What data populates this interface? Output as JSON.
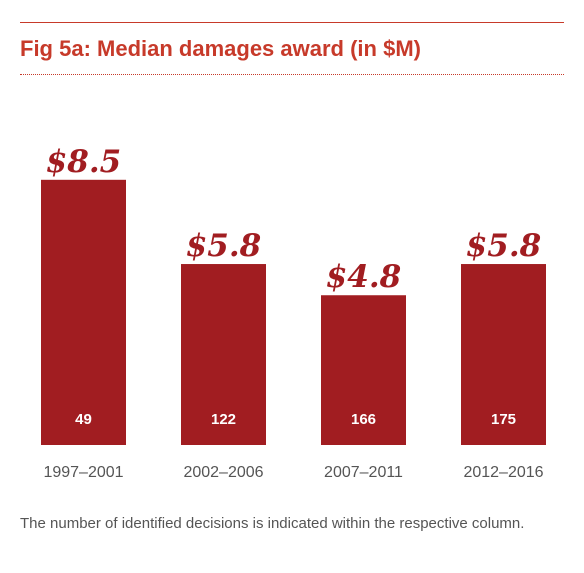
{
  "title": "Fig 5a: Median damages award (in $M)",
  "footnote": "The number of identified decisions is indicated within the respective column.",
  "colors": {
    "accent": "#c73a2a",
    "bar": "#a11d21",
    "label_text": "#555555"
  },
  "chart_data": {
    "type": "bar",
    "title": "Fig 5a: Median damages award (in $M)",
    "xlabel": "",
    "ylabel": "",
    "ylim": [
      0,
      10
    ],
    "grid": false,
    "categories": [
      "1997–2001",
      "2002–2006",
      "2007–2011",
      "2012–2016"
    ],
    "values": [
      8.5,
      5.8,
      4.8,
      5.8
    ],
    "value_labels": [
      "$8.5",
      "$5.8",
      "$4.8",
      "$5.8"
    ],
    "counts": [
      "49",
      "122",
      "166",
      "175"
    ]
  }
}
